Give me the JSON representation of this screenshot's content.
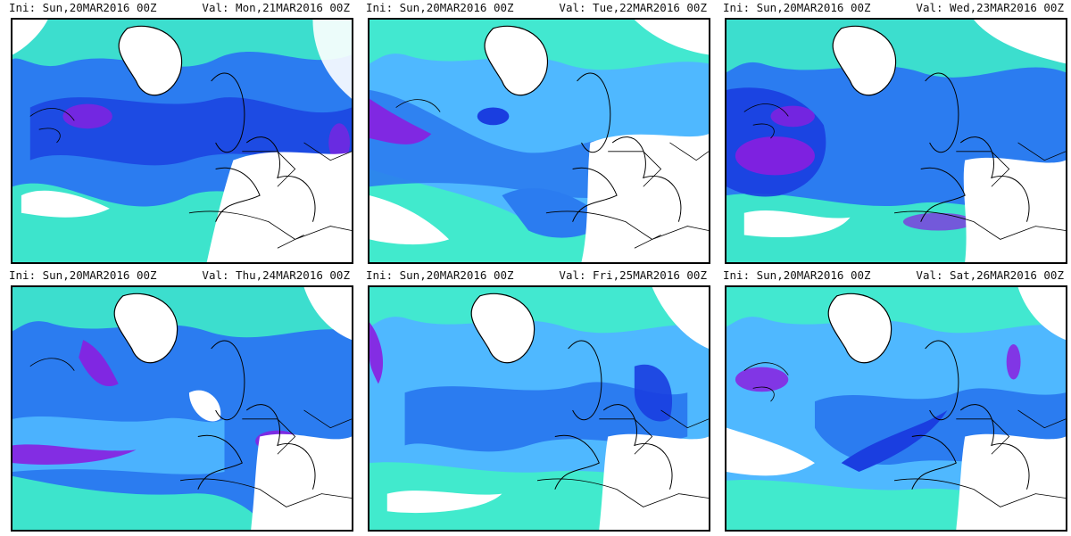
{
  "panels": [
    {
      "ini": "Ini: Sun,20MAR2016 00Z",
      "val": "Val: Mon,21MAR2016 00Z"
    },
    {
      "ini": "Ini: Sun,20MAR2016 00Z",
      "val": "Val: Tue,22MAR2016 00Z"
    },
    {
      "ini": "Ini: Sun,20MAR2016 00Z",
      "val": "Val: Wed,23MAR2016 00Z"
    },
    {
      "ini": "Ini: Sun,20MAR2016 00Z",
      "val": "Val: Thu,24MAR2016 00Z"
    },
    {
      "ini": "Ini: Sun,20MAR2016 00Z",
      "val": "Val: Fri,25MAR2016 00Z"
    },
    {
      "ini": "Ini: Sun,20MAR2016 00Z",
      "val": "Val: Sat,26MAR2016 00Z"
    }
  ],
  "colors": {
    "background": "#ffffff",
    "field_low": "#3ff0c8",
    "field_light": "#4fb8ff",
    "field_mid": "#2b7cf0",
    "field_high": "#1a3ee0",
    "field_peak": "#8a1ee0",
    "field_extreme": "#d030e0",
    "coast": "#000000"
  }
}
